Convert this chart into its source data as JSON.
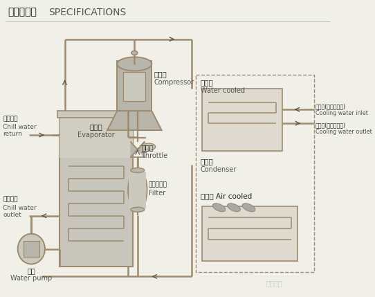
{
  "bg_color": "#f0efe8",
  "lc": "#9e8b6e",
  "gc": "#b8b5aa",
  "lgc": "#cbc9be",
  "evap_fc": "#c8c6bc",
  "coil_fc": "#e0ddd5",
  "dg": "#888880",
  "title_cn": "结构示意图",
  "title_en": "SPECIFICATIONS",
  "compressor_cn": "压缩机",
  "compressor_en": "Compressor",
  "evaporator_cn": "蒸发器",
  "evaporator_en": "Evaporator",
  "throttle_cn": "节流阀",
  "throttle_en": "Throttle",
  "filter_cn": "干燥过滤器",
  "filter_en": "Filter",
  "condenser_cn": "冷凝器",
  "condenser_en": "Condenser",
  "water_cooled_cn": "水冷式",
  "water_cooled_en": "Water cooled",
  "air_cooled": "风冷式 Air cooled",
  "inlet_cn": "入水口(连散热水塔)",
  "inlet_en": "Cooling water inlet",
  "outlet_cn": "出水口(连散热水塔)",
  "outlet_en": "Cooling water outlet",
  "chw_ret_cn": "冰水回口",
  "chw_ret_en1": "Chill water",
  "chw_ret_en2": "return",
  "chw_out_cn": "冰水出口",
  "chw_out_en1": "Chill water",
  "chw_out_en2": "outlet",
  "pump_cn": "水泵",
  "pump_en": "Water pump"
}
